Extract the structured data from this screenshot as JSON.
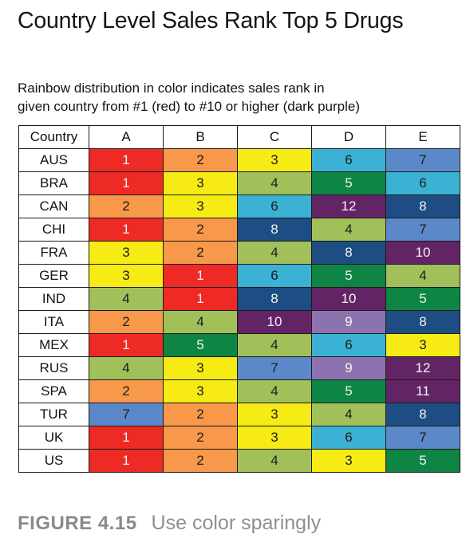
{
  "chart_data": {
    "type": "table",
    "title": "Country Level Sales Rank Top 5 Drugs",
    "subtitle_lines": [
      "Rainbow distribution in color indicates sales rank in",
      "given country from #1 (red) to #10 or higher (dark purple)"
    ],
    "row_header_label": "Country",
    "columns": [
      "A",
      "B",
      "C",
      "D",
      "E"
    ],
    "rows": [
      {
        "country": "AUS",
        "ranks": [
          1,
          2,
          3,
          6,
          7
        ]
      },
      {
        "country": "BRA",
        "ranks": [
          1,
          3,
          4,
          5,
          6
        ]
      },
      {
        "country": "CAN",
        "ranks": [
          2,
          3,
          6,
          12,
          8
        ]
      },
      {
        "country": "CHI",
        "ranks": [
          1,
          2,
          8,
          4,
          7
        ]
      },
      {
        "country": "FRA",
        "ranks": [
          3,
          2,
          4,
          8,
          10
        ]
      },
      {
        "country": "GER",
        "ranks": [
          3,
          1,
          6,
          5,
          4
        ]
      },
      {
        "country": "IND",
        "ranks": [
          4,
          1,
          8,
          10,
          5
        ]
      },
      {
        "country": "ITA",
        "ranks": [
          2,
          4,
          10,
          9,
          8
        ]
      },
      {
        "country": "MEX",
        "ranks": [
          1,
          5,
          4,
          6,
          3
        ]
      },
      {
        "country": "RUS",
        "ranks": [
          4,
          3,
          7,
          9,
          12
        ]
      },
      {
        "country": "SPA",
        "ranks": [
          2,
          3,
          4,
          5,
          11
        ]
      },
      {
        "country": "TUR",
        "ranks": [
          7,
          2,
          3,
          4,
          8
        ]
      },
      {
        "country": "UK",
        "ranks": [
          1,
          2,
          3,
          6,
          7
        ]
      },
      {
        "country": "US",
        "ranks": [
          1,
          2,
          4,
          3,
          5
        ]
      }
    ],
    "rank_colors": {
      "1": "#ee2a24",
      "2": "#f7984a",
      "3": "#f6eb15",
      "4": "#a1c05a",
      "5": "#0e8544",
      "6": "#3bb1d3",
      "7": "#5b88c8",
      "8": "#1d4d82",
      "9": "#8c73b0",
      "10": "#632466",
      "11": "#632466",
      "12": "#632466"
    },
    "light_text_ranks": [
      1,
      5,
      8,
      9,
      10,
      11,
      12
    ]
  },
  "caption": {
    "figure_label": "FIGURE 4.15",
    "text": "Use color sparingly"
  }
}
